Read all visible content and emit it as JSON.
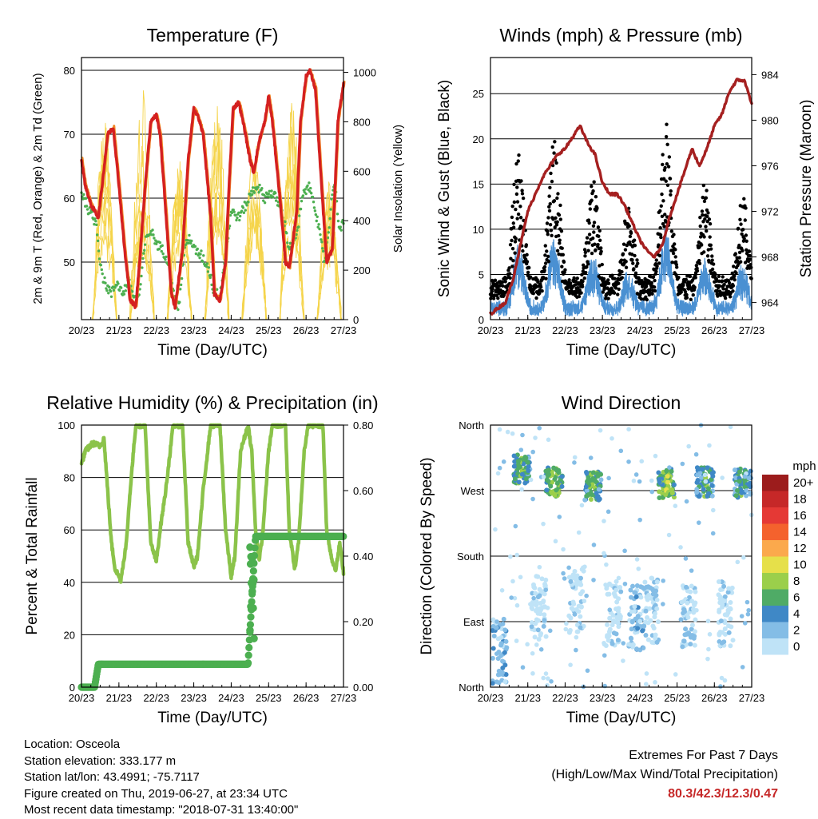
{
  "chart_data": [
    {
      "type": "line",
      "title": "Temperature (F)",
      "xlabel": "Time (Day/UTC)",
      "ylabel": "2m & 9m T (Red, Orange) & 2m Td (Green)",
      "ylabel_right": "Solar Insolation (Yellow)",
      "ylim": [
        41,
        82
      ],
      "ylim_right": [
        0,
        1060
      ],
      "x_ticks": [
        "20/23",
        "21/23",
        "22/23",
        "23/23",
        "24/23",
        "25/23",
        "26/23",
        "27/23"
      ],
      "y_ticks": [
        50,
        60,
        70,
        80
      ],
      "y_ticks_right": [
        0,
        200,
        400,
        600,
        800,
        1000
      ],
      "series": [
        {
          "role": "2m T",
          "color": "#d42020",
          "x": [
            0,
            0.1,
            0.25,
            0.45,
            0.55,
            0.7,
            0.85,
            1.0,
            1.15,
            1.3,
            1.45,
            1.55,
            1.7,
            1.85,
            2.0,
            2.1,
            2.25,
            2.4,
            2.5,
            2.7,
            2.85,
            3.0,
            3.1,
            3.25,
            3.45,
            3.55,
            3.7,
            3.85,
            3.95,
            4.05,
            4.2,
            4.35,
            4.5,
            4.6,
            4.75,
            4.9,
            5.0,
            5.1,
            5.3,
            5.45,
            5.55,
            5.75,
            5.85,
            6.0,
            6.1,
            6.25,
            6.4,
            6.55,
            6.7,
            6.85,
            7.0
          ],
          "y": [
            66,
            62,
            59,
            57,
            62,
            70,
            71,
            62,
            52,
            44,
            43,
            50,
            62,
            72,
            73,
            70,
            58,
            45,
            43,
            52,
            66,
            74,
            73,
            70,
            57,
            45,
            44,
            50,
            63,
            74,
            75,
            71,
            66,
            64,
            69,
            72,
            76,
            72,
            60,
            50,
            49,
            58,
            72,
            79,
            80,
            77,
            63,
            50,
            52,
            72,
            78
          ]
        },
        {
          "role": "2m Td",
          "color": "#4caf50",
          "x": [
            0,
            0.2,
            0.4,
            0.5,
            0.6,
            0.8,
            0.95,
            1.1,
            1.25,
            1.45,
            1.55,
            1.7,
            1.85,
            2.0,
            2.15,
            2.35,
            2.5,
            2.6,
            2.75,
            2.9,
            3.0,
            3.2,
            3.4,
            3.55,
            3.7,
            3.85,
            4.0,
            4.2,
            4.4,
            4.55,
            4.7,
            4.9,
            5.0,
            5.2,
            5.4,
            5.55,
            5.75,
            5.9,
            6.05,
            6.2,
            6.4,
            6.5,
            6.6,
            6.75,
            6.9,
            7.0
          ],
          "y": [
            61,
            58,
            56,
            50,
            47,
            45,
            47,
            45,
            47,
            44,
            45,
            53,
            55,
            53,
            52,
            50,
            44,
            43,
            52,
            54,
            52,
            51,
            49,
            45,
            45,
            51,
            58,
            57,
            59,
            61,
            62,
            60,
            61,
            60,
            57,
            52,
            54,
            60,
            62,
            60,
            53,
            50,
            55,
            63,
            55,
            56
          ]
        }
      ]
    },
    {
      "type": "line",
      "title": "Winds (mph) & Pressure (mb)",
      "xlabel": "Time (Day/UTC)",
      "ylabel": "Sonic Wind & Gust (Blue, Black)",
      "ylabel_right": "Station Pressure (Maroon)",
      "ylim": [
        0,
        29
      ],
      "ylim_right": [
        962.5,
        985.5
      ],
      "x_ticks": [
        "20/23",
        "21/23",
        "22/23",
        "23/23",
        "24/23",
        "25/23",
        "26/23",
        "27/23"
      ],
      "y_ticks": [
        0,
        5,
        10,
        15,
        20,
        25
      ],
      "y_ticks_right": [
        964,
        968,
        972,
        976,
        980,
        984
      ],
      "series": [
        {
          "role": "Pressure",
          "color": "#a52020",
          "x": [
            0,
            0.2,
            0.4,
            0.6,
            0.8,
            1.0,
            1.2,
            1.4,
            1.6,
            1.8,
            2.0,
            2.2,
            2.4,
            2.6,
            2.8,
            3.0,
            3.2,
            3.4,
            3.6,
            3.8,
            4.0,
            4.2,
            4.4,
            4.6,
            4.8,
            5.0,
            5.2,
            5.4,
            5.6,
            5.8,
            6.0,
            6.2,
            6.4,
            6.6,
            6.8,
            7.0
          ],
          "y": [
            963,
            963.5,
            964,
            966,
            969,
            972,
            973.5,
            975,
            976,
            977,
            977.5,
            978.5,
            979.5,
            978,
            977,
            974.5,
            973.5,
            973.5,
            972.5,
            971,
            969.5,
            968.5,
            968,
            969,
            971.5,
            973.5,
            975.5,
            977.5,
            976,
            977.5,
            979.5,
            980.5,
            982.5,
            983.5,
            983.5,
            981.5
          ]
        }
      ]
    },
    {
      "type": "line",
      "title": "Relative Humidity (%) & Precipitation (in)",
      "xlabel": "Time (Day/UTC)",
      "ylabel": "Percent & Total Rainfall",
      "ylim": [
        0,
        100
      ],
      "ylim_right": [
        0,
        0.8
      ],
      "x_ticks": [
        "20/23",
        "21/23",
        "22/23",
        "23/23",
        "24/23",
        "25/23",
        "26/23",
        "27/23"
      ],
      "y_ticks": [
        0,
        20,
        40,
        60,
        80,
        100
      ],
      "y_ticks_right": [
        "0.00",
        "0.20",
        "0.40",
        "0.60",
        "0.80"
      ],
      "series": [
        {
          "role": "RH",
          "color": "#8bc34a",
          "x": [
            0,
            0.1,
            0.3,
            0.5,
            0.6,
            0.7,
            0.8,
            0.9,
            1.05,
            1.2,
            1.3,
            1.45,
            1.55,
            1.7,
            1.85,
            2.0,
            2.1,
            2.25,
            2.45,
            2.55,
            2.7,
            2.85,
            3.0,
            3.1,
            3.25,
            3.45,
            3.55,
            3.7,
            3.85,
            4.0,
            4.1,
            4.25,
            4.45,
            4.55,
            4.65,
            4.75,
            4.85,
            5.0,
            5.1,
            5.25,
            5.45,
            5.55,
            5.7,
            5.8,
            5.95,
            6.05,
            6.2,
            6.45,
            6.55,
            6.7,
            6.8,
            6.9,
            7.0
          ],
          "y": [
            85,
            90,
            93,
            92,
            95,
            75,
            55,
            45,
            41,
            55,
            75,
            100,
            100,
            100,
            55,
            48,
            60,
            75,
            100,
            100,
            100,
            55,
            46,
            50,
            75,
            100,
            100,
            100,
            60,
            42,
            50,
            90,
            100,
            90,
            60,
            48,
            60,
            90,
            100,
            100,
            100,
            60,
            45,
            55,
            90,
            100,
            100,
            100,
            60,
            48,
            45,
            55,
            44
          ]
        },
        {
          "role": "Precipitation",
          "color": "#4caf50",
          "values_in": [
            0,
            0,
            0.07,
            0.07,
            0.07,
            0.07,
            0.07,
            0.46,
            0.46,
            0.46,
            0.46,
            0.46
          ],
          "x": [
            0,
            0.35,
            0.45,
            1.0,
            2.0,
            3.0,
            4.0,
            4.5,
            5.0,
            6.0,
            6.5,
            7.0
          ]
        }
      ]
    },
    {
      "type": "scatter",
      "title": "Wind Direction",
      "xlabel": "Time (Day/UTC)",
      "ylabel": "Direction (Colored By Speed)",
      "x_ticks": [
        "20/23",
        "21/23",
        "22/23",
        "23/23",
        "24/23",
        "25/23",
        "26/23",
        "27/23"
      ],
      "y_ticks": [
        "North",
        "West",
        "South",
        "East",
        "North"
      ],
      "legend_title": "mph",
      "legend": [
        "20+",
        "18",
        "16",
        "14",
        "12",
        "10",
        "8",
        "6",
        "4",
        "2",
        "0"
      ],
      "legend_colors": [
        "#9c1c1c",
        "#c62828",
        "#e53935",
        "#f4622d",
        "#fba94c",
        "#e6e04a",
        "#9bcf4b",
        "#4fab66",
        "#3f88c6",
        "#84bde6",
        "#bfe3f7"
      ]
    }
  ],
  "footer": {
    "location": "Location: Osceola",
    "elevation": "Station elevation: 333.177 m",
    "latlon": "Station lat/lon: 43.4991; -75.7117",
    "created": "Figure created on Thu, 2019-06-27, at 23:34 UTC",
    "recent": "Most recent data timestamp: \"2018-07-31 13:40:00\""
  },
  "extremes": {
    "title": "Extremes For Past 7 Days",
    "subtitle": "(High/Low/Max Wind/Total Precipitation)",
    "values": "80.3/42.3/12.3/0.47"
  }
}
